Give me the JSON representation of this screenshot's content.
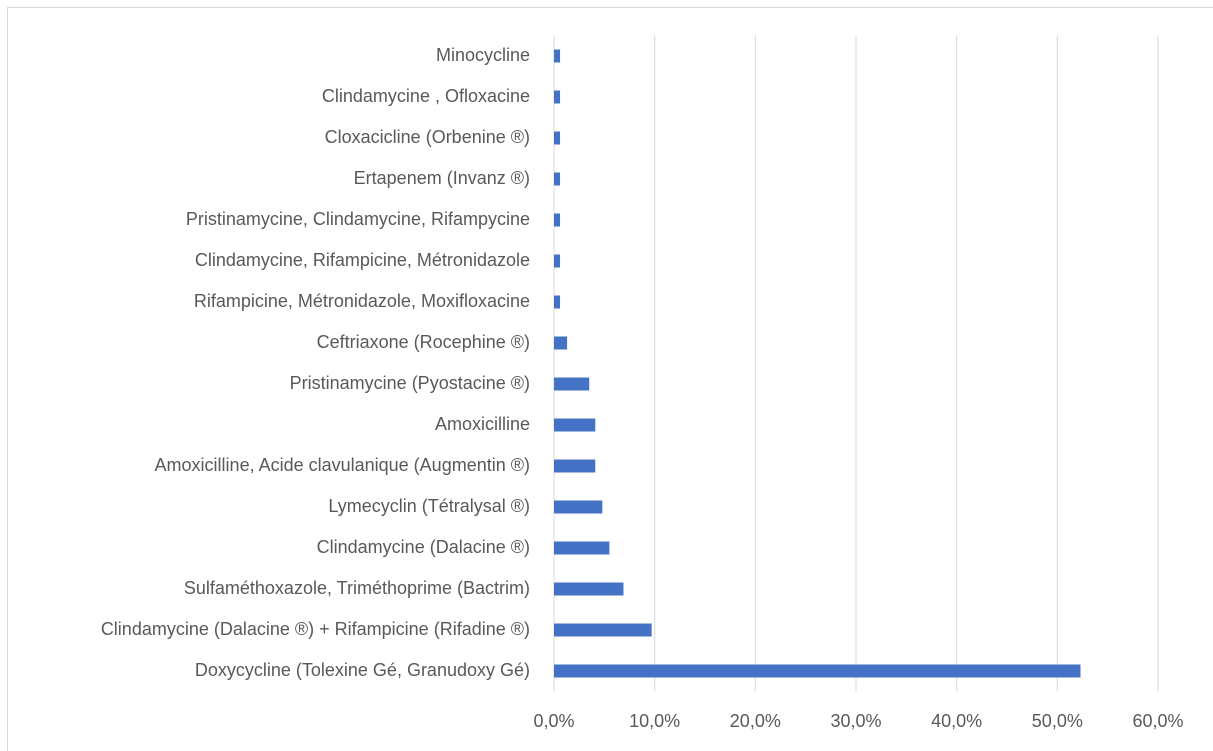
{
  "chart_data": {
    "type": "barh",
    "categories": [
      "Doxycycline (Tolexine Gé, Granudoxy Gé)",
      "Clindamycine (Dalacine ®) + Rifampicine (Rifadine ®)",
      "Sulfaméthoxazole, Triméthoprime (Bactrim)",
      "Clindamycine (Dalacine ®)",
      "Lymecyclin (Tétralysal ®)",
      "Amoxicilline, Acide clavulanique (Augmentin ®)",
      "Amoxicilline",
      "Pristinamycine (Pyostacine ®)",
      "Ceftriaxone (Rocephine ®)",
      "Rifampicine, Métronidazole, Moxifloxacine",
      "Clindamycine, Rifampicine, Métronidazole",
      "Pristinamycine, Clindamycine, Rifampycine",
      "Ertapenem (Invanz ®)",
      "Cloxacicline (Orbenine ®)",
      "Clindamycine , Ofloxacine",
      "Minocycline"
    ],
    "values": [
      52.3,
      9.7,
      6.9,
      5.5,
      4.8,
      4.1,
      4.1,
      3.5,
      1.3,
      0.6,
      0.6,
      0.6,
      0.6,
      0.6,
      0.6,
      0.6
    ],
    "color": "#4472c4",
    "xlim": [
      0,
      60
    ],
    "xticks": [
      {
        "value": 0,
        "label": "0,0%"
      },
      {
        "value": 10,
        "label": "10,0%"
      },
      {
        "value": 20,
        "label": "20,0%"
      },
      {
        "value": 30,
        "label": "30,0%"
      },
      {
        "value": 40,
        "label": "40,0%"
      },
      {
        "value": 50,
        "label": "50,0%"
      },
      {
        "value": 60,
        "label": "60,0%"
      }
    ],
    "grid": true
  }
}
